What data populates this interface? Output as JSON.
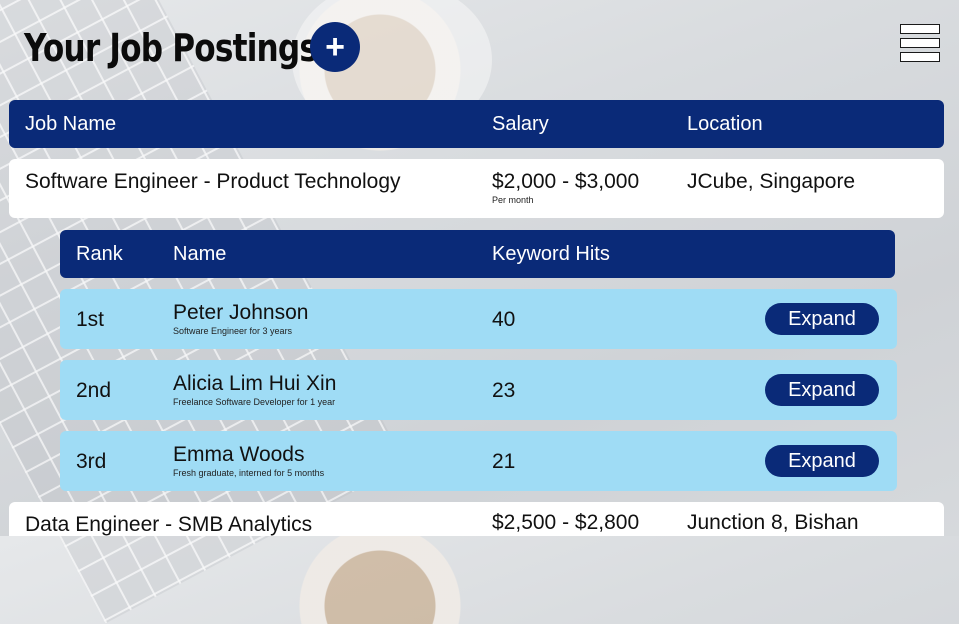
{
  "page": {
    "title": "Your Job Postings",
    "add_label": "+"
  },
  "jobs_header": {
    "job_name": "Job Name",
    "salary": "Salary",
    "location": "Location"
  },
  "jobs": [
    {
      "name": "Software Engineer - Product Technology",
      "salary": "$2,000 - $3,000",
      "salary_note": "Per month",
      "location": "JCube, Singapore"
    },
    {
      "name": "Data Engineer - SMB Analytics",
      "salary": "$2,500 - $2,800",
      "location": "Junction 8, Bishan"
    }
  ],
  "candidates_header": {
    "rank": "Rank",
    "name": "Name",
    "keyword_hits": "Keyword Hits"
  },
  "candidates": [
    {
      "rank": "1st",
      "name": "Peter Johnson",
      "subtitle": "Software Engineer for 3 years",
      "hits": "40",
      "action": "Expand"
    },
    {
      "rank": "2nd",
      "name": "Alicia Lim Hui Xin",
      "subtitle": "Freelance Software Developer for 1 year",
      "hits": "23",
      "action": "Expand"
    },
    {
      "rank": "3rd",
      "name": "Emma Woods",
      "subtitle": "Fresh graduate, interned for 5 months",
      "hits": "21",
      "action": "Expand"
    }
  ],
  "icons": {
    "add": "plus-icon",
    "menu": "hamburger-menu-icon"
  },
  "colors": {
    "primary": "#0a2a78",
    "candidate_row": "#9fdcf5",
    "row_bg": "#ffffff"
  }
}
